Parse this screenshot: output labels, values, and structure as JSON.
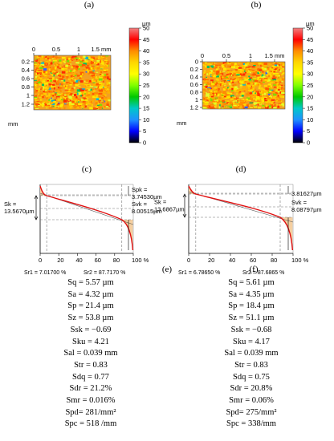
{
  "colors": {
    "map_gradient": [
      "#f08080",
      "#ff0000",
      "#ff8c00",
      "#ffd700",
      "#ffff00",
      "#7fff00",
      "#00c800",
      "#00c8c8",
      "#1e90ff",
      "#0000ff",
      "#000000"
    ],
    "curve": "#e01010",
    "fill": "#f5cfa0"
  },
  "chart_data": [
    {
      "panel": "(a)",
      "type": "heatmap",
      "x_ticks": [
        "0",
        "0.5",
        "1",
        "1.5 mm"
      ],
      "y_ticks": [
        "0.2",
        "0.4",
        "0.6",
        "0.8",
        "1",
        "1.2"
      ],
      "y_unit": "mm",
      "colorbar": {
        "unit": "µm",
        "ticks": [
          "50",
          "45",
          "40",
          "35",
          "30",
          "25",
          "20",
          "15",
          "10",
          "5",
          "0"
        ],
        "range": [
          0,
          50
        ]
      }
    },
    {
      "panel": "(b)",
      "type": "heatmap",
      "x_ticks": [
        "0",
        "0.5",
        "1",
        "1.5 mm"
      ],
      "y_ticks": [
        "0",
        "0.2",
        "0.4",
        "0.6",
        "0.8",
        "1",
        "1.2"
      ],
      "y_unit": "mm",
      "colorbar": {
        "unit": "µm",
        "ticks": [
          "50",
          "45",
          "40",
          "35",
          "30",
          "25",
          "20",
          "15",
          "10",
          "5",
          "0"
        ],
        "range": [
          0,
          50
        ]
      }
    },
    {
      "panel": "(c)",
      "type": "line",
      "x_ticks": [
        "0",
        "20",
        "40",
        "60",
        "80",
        "100 %"
      ],
      "xlim": [
        0,
        100
      ],
      "sk_label": [
        "Sk =",
        "13.5670µm"
      ],
      "spk_label": [
        "Spk =",
        "3.74530µm"
      ],
      "svk_label": [
        "Svk =",
        "8.00515µm"
      ],
      "sr1_label": "Sr1 = 7.01700 %",
      "sr2_label": "Sr2 = 87.7170 %",
      "sr1": 7.017,
      "sr2": 87.717
    },
    {
      "panel": "(d)",
      "type": "line",
      "x_ticks": [
        "0",
        "20",
        "40",
        "60",
        "80",
        "100 %"
      ],
      "xlim": [
        0,
        100
      ],
      "sk_label": [
        "Sk =",
        "13.6867µm"
      ],
      "spk_label": [
        "3.81627µm"
      ],
      "svk_label": [
        "Svk =",
        "8.08797µm"
      ],
      "sr1_label": "Sr1 = 6.78650 %",
      "sr2_label": "Sr2 = 87.6865 %",
      "sr1": 6.7865,
      "sr2": 87.6865
    }
  ],
  "panel_e": {
    "letter": "(e)",
    "params": [
      "Sq = 5.57 µm",
      "Sa = 4.32 µm",
      "Sp = 21.4 µm",
      "Sz = 53.8 µm",
      "Ssk = −0.69",
      "Sku = 4.21",
      "Sal = 0.039 mm",
      "Str = 0.83",
      "Sdq = 0.77",
      "Sdr = 21.2%",
      "Smr = 0.016%",
      "Spd= 281/mm²",
      "Spc = 518 /mm"
    ]
  },
  "panel_f": {
    "letter": "(f)",
    "params": [
      "Sq = 5.61 µm",
      "Sa = 4.35 µm",
      "Sp = 18.4 µm",
      "Sz = 51.1 µm",
      "Ssk = −0.68",
      "Sku = 4.17",
      "Sal = 0.039 mm",
      "Str = 0.83",
      "Sdq = 0.75",
      "Sdr = 20.8%",
      "Smr = 0.06%",
      "Spd= 275/mm²",
      "Spc = 338/mm"
    ]
  }
}
